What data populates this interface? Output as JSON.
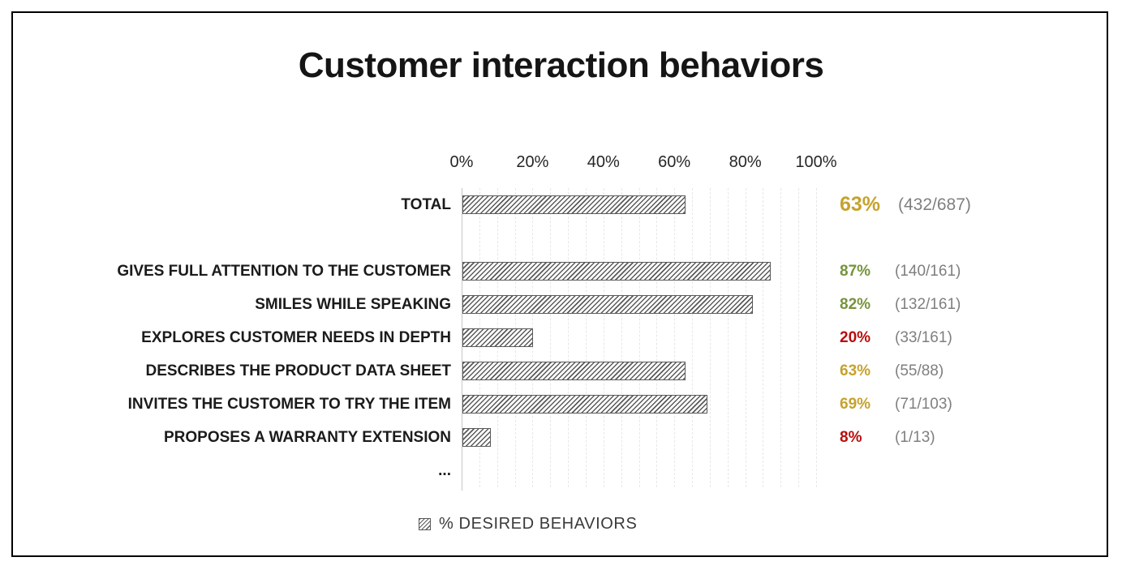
{
  "title": "Customer interaction behaviors",
  "chart_data": {
    "type": "bar",
    "orientation": "horizontal",
    "title": "Customer interaction behaviors",
    "xlabel": "",
    "ylabel": "",
    "x_axis": {
      "ticks": [
        "0%",
        "20%",
        "40%",
        "60%",
        "80%",
        "100%"
      ],
      "range": [
        0,
        100
      ],
      "gridline_step": 5,
      "grid": true,
      "position": "top"
    },
    "legend": {
      "label": "% DESIRED BEHAVIORS",
      "position": "bottom",
      "swatch": "hatched-square"
    },
    "categories": [
      "TOTAL",
      "GIVES FULL ATTENTION TO THE CUSTOMER",
      "SMILES WHILE SPEAKING",
      "EXPLORES CUSTOMER NEEDS IN DEPTH",
      "DESCRIBES THE PRODUCT DATA SHEET",
      "INVITES THE CUSTOMER TO TRY THE ITEM",
      "PROPOSES A WARRANTY EXTENSION",
      "..."
    ],
    "series": [
      {
        "name": "% DESIRED BEHAVIORS",
        "values": [
          63,
          87,
          82,
          20,
          63,
          69,
          8,
          null
        ]
      }
    ],
    "rows": [
      {
        "label": "TOTAL",
        "value": 63,
        "percent_label": "63%",
        "fraction_label": "(432/687)",
        "color": "#c6a22d",
        "emphasis": true
      },
      {
        "spacer": true
      },
      {
        "label": "GIVES FULL ATTENTION TO THE CUSTOMER",
        "value": 87,
        "percent_label": "87%",
        "fraction_label": "(140/161)",
        "color": "#77933c"
      },
      {
        "label": "SMILES WHILE SPEAKING",
        "value": 82,
        "percent_label": "82%",
        "fraction_label": "(132/161)",
        "color": "#77933c"
      },
      {
        "label": "EXPLORES CUSTOMER NEEDS IN DEPTH",
        "value": 20,
        "percent_label": "20%",
        "fraction_label": "(33/161)",
        "color": "#b80d0d"
      },
      {
        "label": "DESCRIBES THE PRODUCT DATA SHEET",
        "value": 63,
        "percent_label": "63%",
        "fraction_label": "(55/88)",
        "color": "#c6a22d"
      },
      {
        "label": "INVITES THE CUSTOMER TO TRY THE ITEM",
        "value": 69,
        "percent_label": "69%",
        "fraction_label": "(71/103)",
        "color": "#c6a22d"
      },
      {
        "label": "PROPOSES A WARRANTY EXTENSION",
        "value": 8,
        "percent_label": "8%",
        "fraction_label": "(1/13)",
        "color": "#b80d0d"
      },
      {
        "label": "...",
        "value": null
      }
    ],
    "colors": {
      "bar_hatch": "#5a5a5a",
      "gridline": "#e7e7e7",
      "axis_line": "#c6c6c6",
      "good_green": "#77933c",
      "mid_gold": "#c6a22d",
      "bad_red": "#b80d0d",
      "fraction_gray": "#7f7f7f"
    }
  }
}
